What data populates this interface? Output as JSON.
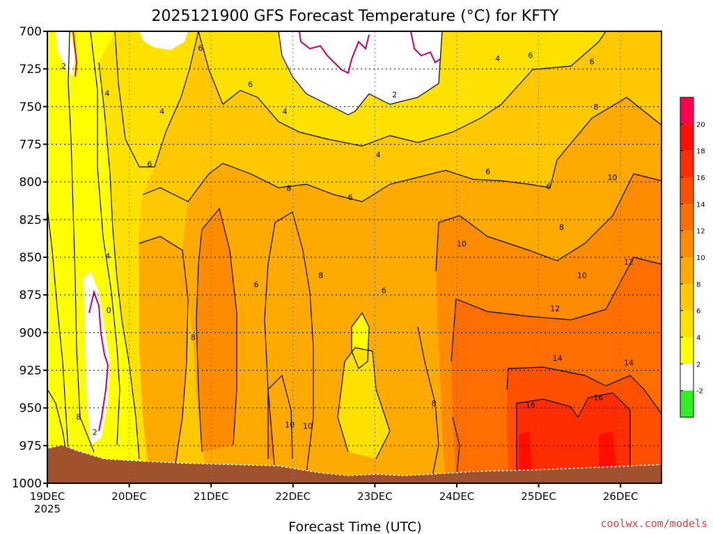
{
  "colors": {
    "white_band": "#ffffff",
    "yellow_2_4": "#ffff00",
    "gold_4_6": "#ffe100",
    "amber_6_8": "#ffc800",
    "orange_8_10": "#ffaa00",
    "orange_10_12": "#ff8c00",
    "orange_12_14": "#ff6e00",
    "red_14_16": "#ff5000",
    "red_16_18": "#ff2d00",
    "red_18_20": "#ff0f00",
    "magenta_20": "#ff0050",
    "green_neg": "#33ee22",
    "ground": "#a0522d",
    "contour": "#000000",
    "zero_contour": "#c0006a",
    "credit": "#d04040"
  },
  "chart_data": {
    "type": "heatmap",
    "title": "2025121900 GFS Forecast Temperature (°C) for KFTY",
    "xlabel": "Forecast Time (UTC)",
    "ylabel": "",
    "credit": "coolwx.com/models",
    "x_tick_labels": [
      "19DEC",
      "20DEC",
      "21DEC",
      "22DEC",
      "23DEC",
      "24DEC",
      "25DEC",
      "26DEC"
    ],
    "x_tick_year": "2025",
    "x_days": [
      0,
      1,
      2,
      3,
      4,
      5,
      6,
      7
    ],
    "xlim_days": [
      0,
      7.5
    ],
    "y_tick_labels": [
      "700",
      "725",
      "750",
      "775",
      "800",
      "825",
      "850",
      "875",
      "900",
      "925",
      "950",
      "975",
      "1000"
    ],
    "y_levels_hpa": [
      700,
      725,
      750,
      775,
      800,
      825,
      850,
      875,
      900,
      925,
      950,
      975,
      1000
    ],
    "ylim_hpa": [
      700,
      1000
    ],
    "colorbar": {
      "tick_labels": [
        "20",
        "18",
        "16",
        "14",
        "12",
        "10",
        "8",
        "6",
        "4",
        "2",
        "-2"
      ],
      "bins": [
        -4,
        -2,
        2,
        4,
        6,
        8,
        10,
        12,
        14,
        16,
        18,
        20,
        22
      ]
    },
    "contour_interval_c": 2,
    "contour_labels": [
      {
        "text": "2",
        "day": 0.2,
        "p": 723
      },
      {
        "text": "4",
        "day": 0.73,
        "p": 741
      },
      {
        "text": "4",
        "day": 1.4,
        "p": 753
      },
      {
        "text": "6",
        "day": 1.87,
        "p": 711
      },
      {
        "text": "6",
        "day": 2.48,
        "p": 735
      },
      {
        "text": "4",
        "day": 2.9,
        "p": 753
      },
      {
        "text": "2",
        "day": 4.24,
        "p": 742
      },
      {
        "text": "4",
        "day": 4.04,
        "p": 782
      },
      {
        "text": "4",
        "day": 5.5,
        "p": 718
      },
      {
        "text": "6",
        "day": 5.9,
        "p": 716
      },
      {
        "text": "6",
        "day": 6.65,
        "p": 720
      },
      {
        "text": "8",
        "day": 6.7,
        "p": 750
      },
      {
        "text": "6",
        "day": 1.25,
        "p": 788
      },
      {
        "text": "6",
        "day": 5.38,
        "p": 793
      },
      {
        "text": "6",
        "day": 6.12,
        "p": 803
      },
      {
        "text": "10",
        "day": 6.9,
        "p": 797
      },
      {
        "text": "8",
        "day": 2.95,
        "p": 804
      },
      {
        "text": "6",
        "day": 3.7,
        "p": 810
      },
      {
        "text": "8",
        "day": 6.28,
        "p": 830
      },
      {
        "text": "10",
        "day": 5.06,
        "p": 841
      },
      {
        "text": "12",
        "day": 7.1,
        "p": 853
      },
      {
        "text": "4",
        "day": 0.74,
        "p": 849
      },
      {
        "text": "6",
        "day": 2.55,
        "p": 868
      },
      {
        "text": "8",
        "day": 3.34,
        "p": 862
      },
      {
        "text": "10",
        "day": 6.53,
        "p": 862
      },
      {
        "text": "6",
        "day": 4.11,
        "p": 872
      },
      {
        "text": "0",
        "day": 0.75,
        "p": 885
      },
      {
        "text": "12",
        "day": 6.2,
        "p": 884
      },
      {
        "text": "8",
        "day": 1.78,
        "p": 903
      },
      {
        "text": "14",
        "day": 6.23,
        "p": 917
      },
      {
        "text": "14",
        "day": 7.1,
        "p": 920
      },
      {
        "text": "8",
        "day": 4.72,
        "p": 947
      },
      {
        "text": "16",
        "day": 5.9,
        "p": 948
      },
      {
        "text": "16",
        "day": 6.73,
        "p": 943
      },
      {
        "text": "8",
        "day": 0.38,
        "p": 956
      },
      {
        "text": "2",
        "day": 0.58,
        "p": 966
      },
      {
        "text": "10",
        "day": 2.96,
        "p": 961
      },
      {
        "text": "10",
        "day": 3.18,
        "p": 962
      }
    ]
  }
}
